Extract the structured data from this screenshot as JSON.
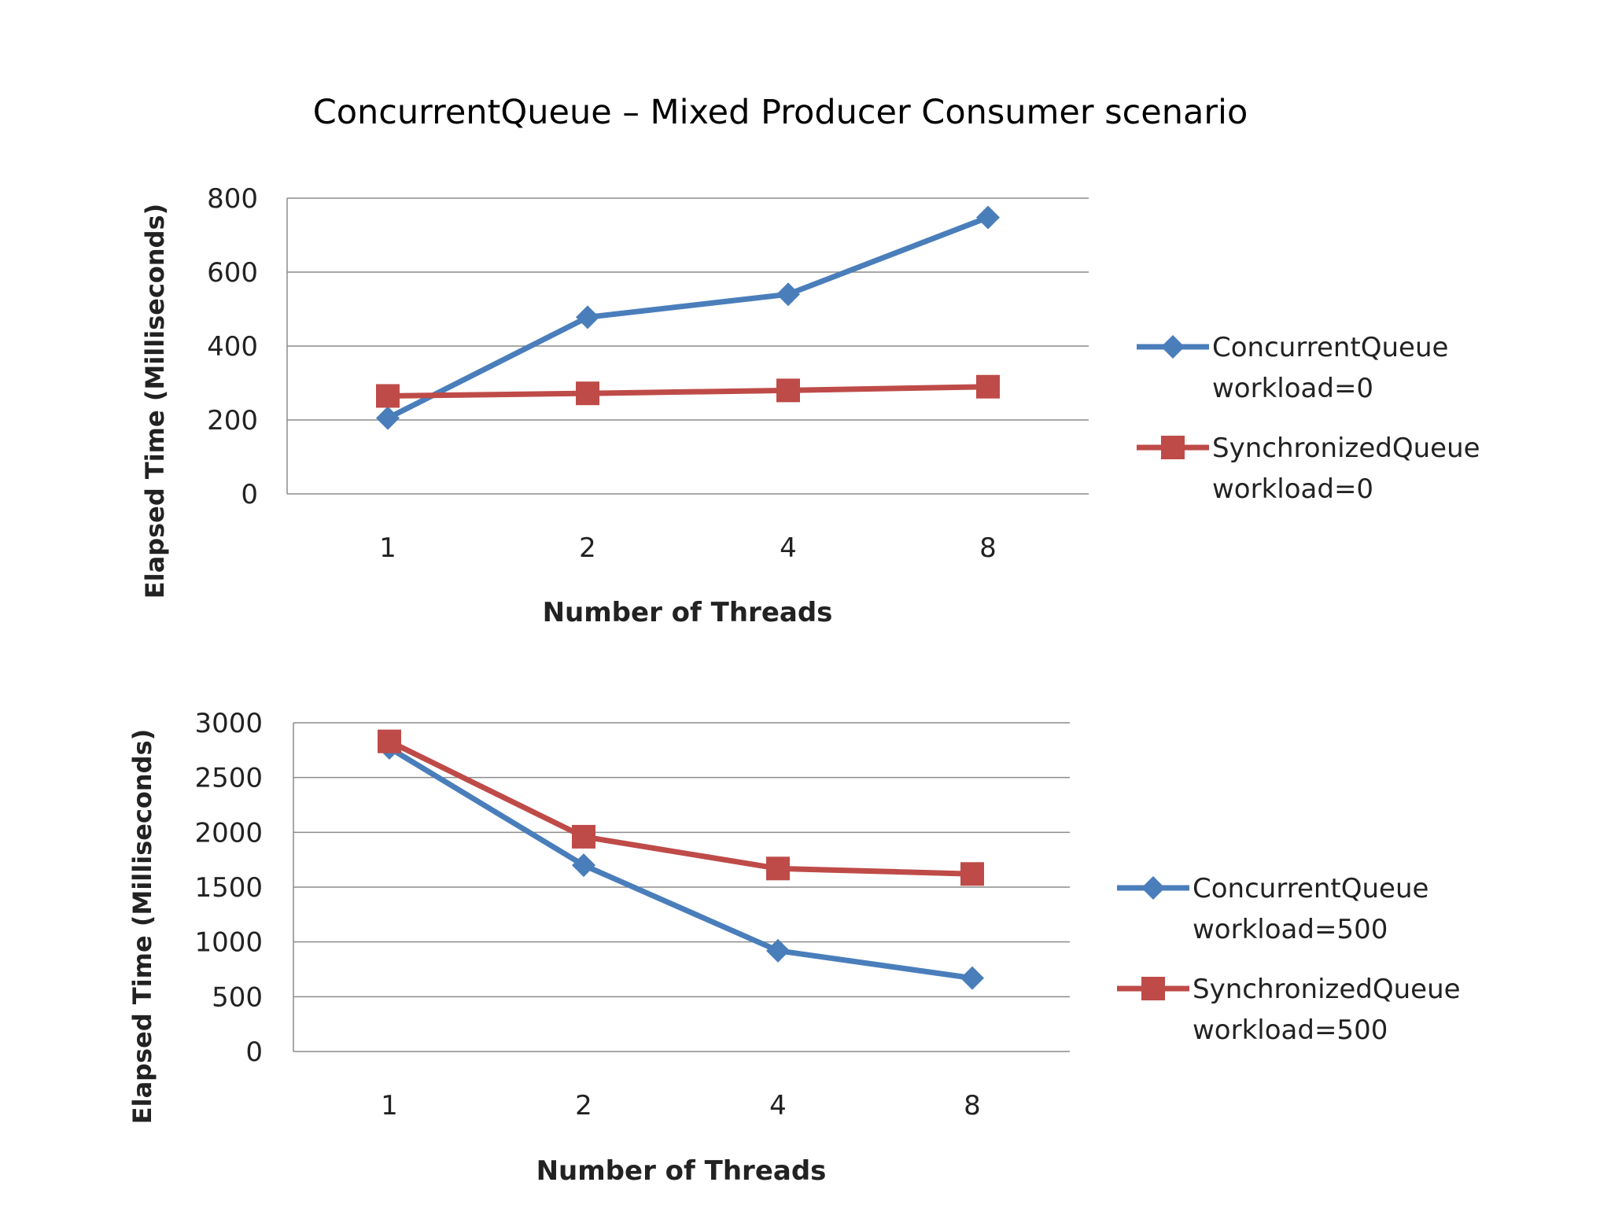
{
  "page_title": "ConcurrentQueue – Mixed Producer Consumer scenario",
  "chart_data": [
    {
      "type": "line",
      "title": "",
      "xlabel": "Number of Threads",
      "ylabel": "Elapsed Time (Milliseconds)",
      "categories": [
        "1",
        "2",
        "4",
        "8"
      ],
      "ylim": [
        0,
        800
      ],
      "yticks": [
        0,
        200,
        400,
        600,
        800
      ],
      "grid": true,
      "legend_position": "right",
      "series": [
        {
          "name": "ConcurrentQueue\nworkload=0",
          "legend_lines": [
            "ConcurrentQueue",
            "workload=0"
          ],
          "values": [
            205,
            478,
            540,
            748
          ],
          "color": "#4a7ebb",
          "marker": "diamond"
        },
        {
          "name": "SynchronizedQueue\nworkload=0",
          "legend_lines": [
            "SynchronizedQueue",
            "workload=0"
          ],
          "values": [
            265,
            272,
            280,
            290
          ],
          "color": "#be4b48",
          "marker": "square"
        }
      ]
    },
    {
      "type": "line",
      "title": "",
      "xlabel": "Number of Threads",
      "ylabel": "Elapsed Time (Milliseconds)",
      "categories": [
        "1",
        "2",
        "4",
        "8"
      ],
      "ylim": [
        0,
        3000
      ],
      "yticks": [
        0,
        500,
        1000,
        1500,
        2000,
        2500,
        3000
      ],
      "grid": true,
      "legend_position": "right",
      "series": [
        {
          "name": "ConcurrentQueue\nworkload=500",
          "legend_lines": [
            "ConcurrentQueue",
            "workload=500"
          ],
          "values": [
            2770,
            1700,
            920,
            670
          ],
          "color": "#4a7ebb",
          "marker": "diamond"
        },
        {
          "name": "SynchronizedQueue\nworkload=500",
          "legend_lines": [
            "SynchronizedQueue",
            "workload=500"
          ],
          "values": [
            2830,
            1960,
            1670,
            1620
          ],
          "color": "#be4b48",
          "marker": "square"
        }
      ]
    }
  ]
}
